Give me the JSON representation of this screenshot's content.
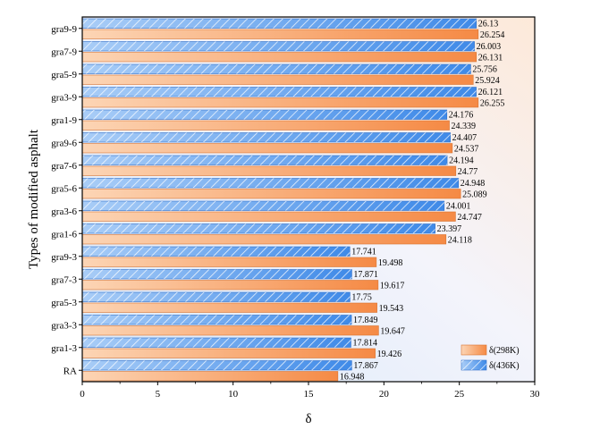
{
  "chart_data": {
    "type": "bar",
    "orientation": "horizontal",
    "xlabel": "δ",
    "ylabel": "Types of modified asphalt",
    "xlim": [
      0,
      30
    ],
    "xticks": [
      0,
      5,
      10,
      15,
      20,
      25,
      30
    ],
    "grid": false,
    "legend_position": "bottom-right",
    "categories": [
      "RA",
      "gra1-3",
      "gra3-3",
      "gra5-3",
      "gra7-3",
      "gra9-3",
      "gra1-6",
      "gra3-6",
      "gra5-6",
      "gra7-6",
      "gra9-6",
      "gra1-9",
      "gra3-9",
      "gra5-9",
      "gra7-9",
      "gra9-9"
    ],
    "series": [
      {
        "name": "δ(298K)",
        "color": "#f5a46b",
        "pattern": "solid",
        "values": [
          16.948,
          19.426,
          19.647,
          19.543,
          19.617,
          19.498,
          24.118,
          24.747,
          25.089,
          24.77,
          24.537,
          24.339,
          26.255,
          25.924,
          26.131,
          26.254
        ],
        "labels": [
          "16.948",
          "19.426",
          "19.647",
          "19.543",
          "19.617",
          "19.498",
          "24.118",
          "24.747",
          "25.089",
          "24.77",
          "24.537",
          "24.339",
          "26.255",
          "25.924",
          "26.131",
          "26.254"
        ]
      },
      {
        "name": "δ(436K)",
        "color": "#5b9ff0",
        "pattern": "hatched",
        "values": [
          17.867,
          17.814,
          17.849,
          17.75,
          17.871,
          17.741,
          23.397,
          24.001,
          24.948,
          24.194,
          24.407,
          24.176,
          26.121,
          25.756,
          26.003,
          26.13
        ],
        "labels": [
          "17.867",
          "17.814",
          "17.849",
          "17.75",
          "17.871",
          "17.741",
          "23.397",
          "24.001",
          "24.948",
          "24.194",
          "24.407",
          "24.176",
          "26.121",
          "25.756",
          "26.003",
          "26.13"
        ]
      }
    ]
  }
}
